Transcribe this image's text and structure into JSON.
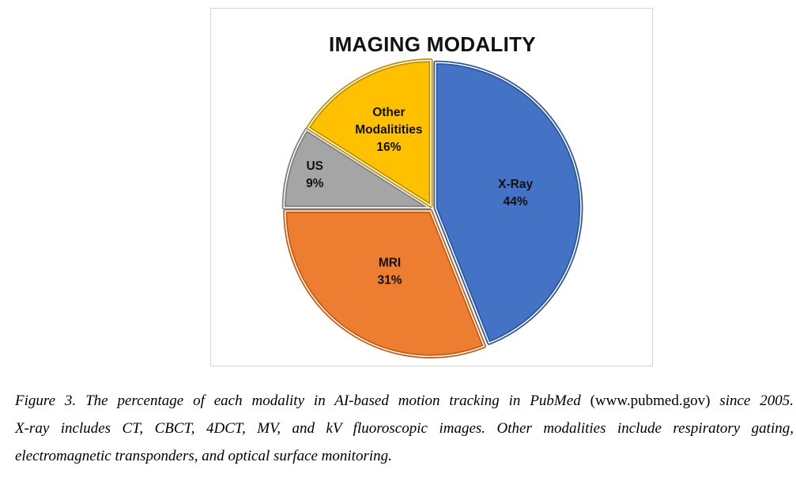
{
  "chart_data": {
    "type": "pie",
    "title": "IMAGING MODALITY",
    "slices": [
      {
        "name": "X-Ray",
        "value": 44,
        "label": "44%",
        "color": "#4472c4",
        "edge": "#2f5597"
      },
      {
        "name": "MRI",
        "value": 31,
        "label": "31%",
        "color": "#ed7d31",
        "edge": "#c55a11"
      },
      {
        "name": "US",
        "value": 9,
        "label": "9%",
        "color": "#a5a5a5",
        "edge": "#7f7f7f"
      },
      {
        "name": "Other Modalitities",
        "value": 16,
        "label": "16%",
        "color": "#ffc000",
        "edge": "#bf9000"
      }
    ],
    "start_angle_deg": 0,
    "direction": "clockwise",
    "exploded": true
  },
  "caption": {
    "line1_a": "Figure 3. The percentage of each modality in AI-based motion tracking in PubMed",
    "line1_b": "(www.pubmed.gov)",
    "line1_c": "since 2005.",
    "line2": "X-ray includes CT, CBCT, 4DCT, MV, and kV fluoroscopic images. Other modalities include respiratory gating,",
    "line3": "electromagnetic transponders, and optical surface monitoring."
  }
}
